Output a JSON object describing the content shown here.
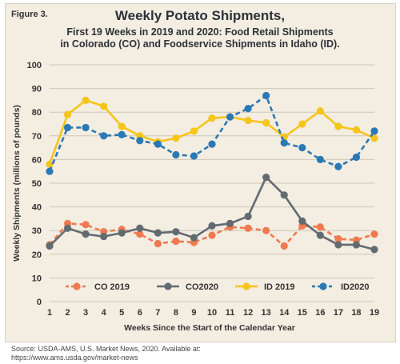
{
  "figure_label": "Figure 3.",
  "title": "Weekly Potato Shipments,",
  "subtitle_line1": "First 19 Weeks in 2019 and 2020: Food Retail Shipments",
  "subtitle_line2": "in Colorado (CO) and Foodservice Shipments in Idaho (ID).",
  "source_line1": "Source: USDA-AMS, U.S. Market News, 2020. Available at:",
  "source_line2": "https://www.ams.usda.gov/market-news",
  "chart_data": {
    "type": "line",
    "xlabel": "Weeks Since the Start of the Calendar Year",
    "ylabel": "Weekly Shipments (millions of pounds)",
    "x": [
      1,
      2,
      3,
      4,
      5,
      6,
      7,
      8,
      9,
      10,
      11,
      12,
      13,
      14,
      15,
      16,
      17,
      18,
      19
    ],
    "ylim": [
      0,
      100
    ],
    "yticks": [
      0,
      10,
      20,
      30,
      40,
      50,
      60,
      70,
      80,
      90,
      100
    ],
    "grid": "horizontal",
    "legend_position": "bottom",
    "series": [
      {
        "name": "CO 2019",
        "color": "#f07a50",
        "dashed": true,
        "values": [
          24,
          33,
          32.5,
          29.5,
          30.5,
          28.5,
          24.5,
          25.5,
          25,
          28,
          31.5,
          31,
          30,
          23.5,
          32,
          31.5,
          26.5,
          26,
          28.5
        ]
      },
      {
        "name": "CO2020",
        "color": "#626b70",
        "dashed": false,
        "values": [
          23.5,
          31,
          28.5,
          27.5,
          29,
          31,
          29,
          29.5,
          27,
          32,
          33,
          36,
          52.5,
          45,
          34,
          28,
          24,
          24,
          22
        ]
      },
      {
        "name": "ID 2019",
        "color": "#f5c518",
        "dashed": false,
        "values": [
          58,
          79,
          85,
          82.5,
          74,
          70,
          67.5,
          69,
          72,
          77.5,
          78,
          76.5,
          75.5,
          69.5,
          75,
          80.5,
          74,
          72.5,
          69
        ]
      },
      {
        "name": "ID2020",
        "color": "#2a79b5",
        "dashed": true,
        "values": [
          55,
          73.5,
          73.5,
          70,
          70.5,
          68,
          66.5,
          62,
          61.5,
          66.5,
          78,
          81.5,
          87,
          67,
          65,
          60,
          57,
          61,
          72
        ]
      }
    ]
  }
}
